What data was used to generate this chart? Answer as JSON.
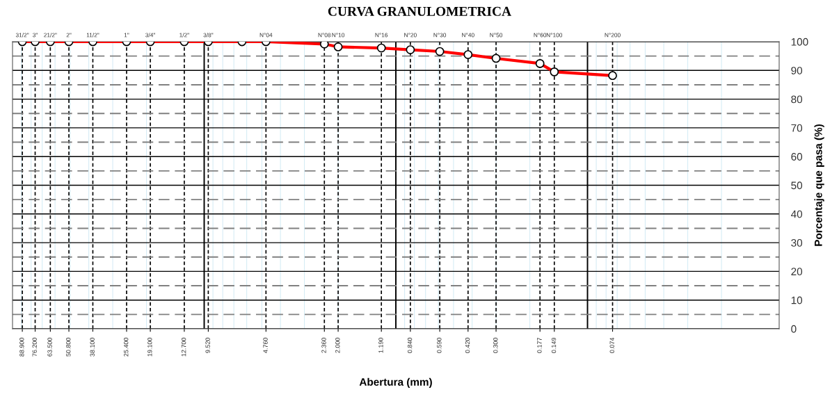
{
  "chart_data": {
    "type": "line",
    "title": "CURVA GRANULOMETRICA",
    "xlabel": "Abertura (mm)",
    "ylabel": "Porcentaje que pasa (%)",
    "log": "x",
    "xlim": [
      100,
      0.01
    ],
    "ylim": [
      0,
      100
    ],
    "x": [
      88.9,
      76.2,
      63.5,
      50.8,
      38.1,
      25.4,
      19.1,
      12.7,
      9.52,
      6.35,
      4.76,
      2.36,
      2.0,
      1.19,
      0.84,
      0.59,
      0.42,
      0.3,
      0.177,
      0.149,
      0.074
    ],
    "series": [
      {
        "color": "#ff0000",
        "values": [
          100,
          100,
          100,
          100,
          100,
          100,
          100,
          100,
          100,
          100,
          100,
          99.2,
          98.2,
          97.8,
          97.2,
          96.6,
          95.5,
          94.2,
          92.4,
          89.5,
          88.2
        ]
      }
    ],
    "marker": "circle",
    "line_style": "solid",
    "grid": true,
    "legend": false,
    "xticks": [
      {
        "value": 88.9,
        "label": "88.900"
      },
      {
        "value": 76.2,
        "label": "76.200"
      },
      {
        "value": 63.5,
        "label": "63.500"
      },
      {
        "value": 50.8,
        "label": "50.800"
      },
      {
        "value": 38.1,
        "label": "38.100"
      },
      {
        "value": 25.4,
        "label": "25.400"
      },
      {
        "value": 19.1,
        "label": "19.100"
      },
      {
        "value": 12.7,
        "label": "12.700"
      },
      {
        "value": 9.52,
        "label": "9.520"
      },
      {
        "value": 4.76,
        "label": "4.760"
      },
      {
        "value": 2.36,
        "label": "2.360"
      },
      {
        "value": 2.0,
        "label": "2.000"
      },
      {
        "value": 1.19,
        "label": "1.190"
      },
      {
        "value": 0.84,
        "label": "0.840"
      },
      {
        "value": 0.59,
        "label": "0.590"
      },
      {
        "value": 0.42,
        "label": "0.420"
      },
      {
        "value": 0.3,
        "label": "0.300"
      },
      {
        "value": 0.177,
        "label": "0.177"
      },
      {
        "value": 0.149,
        "label": "0.149"
      },
      {
        "value": 0.074,
        "label": "0.074"
      }
    ],
    "annotations": [
      "31/2\"",
      "3\"",
      "21/2\"",
      "2\"",
      "11/2\"",
      "1\"",
      "3/4\"",
      "1/2\"",
      "3/8\"",
      "N°04",
      "N°08",
      "N°10",
      "N°16",
      "N°20",
      "N°30",
      "N°40",
      "N°50",
      "N°60",
      "N°100",
      "N°200"
    ],
    "yticks": [
      0,
      {
        "value": 5,
        "label": null
      },
      10,
      {
        "value": 15,
        "label": null
      },
      20,
      {
        "value": 25,
        "label": null
      },
      30,
      {
        "value": 35,
        "label": null
      },
      40,
      {
        "value": 45,
        "label": null
      },
      50,
      {
        "value": 55,
        "label": null
      },
      60,
      {
        "value": 65,
        "label": null
      },
      70,
      {
        "value": 75,
        "label": null
      },
      80,
      {
        "value": 85,
        "label": null
      },
      90,
      {
        "value": 95,
        "label": null
      },
      100
    ]
  }
}
